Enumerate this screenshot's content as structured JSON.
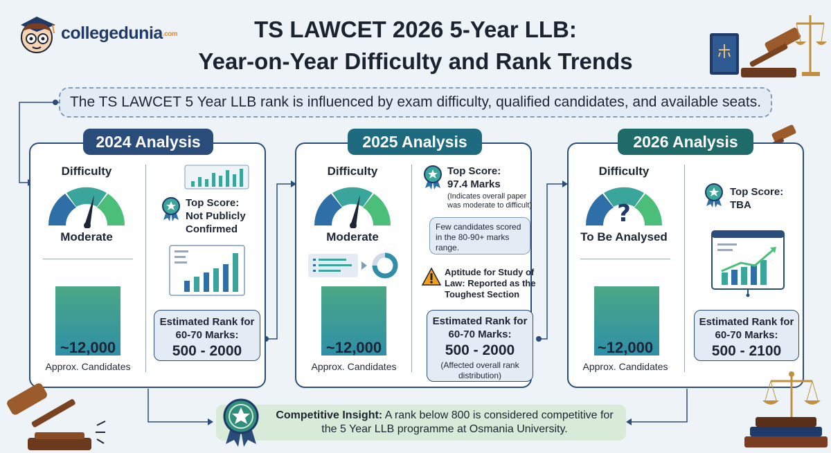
{
  "header": {
    "logo_text": "collegedunia",
    "logo_suffix": ".com",
    "title_line1": "TS LAWCET 2026 5-Year LLB:",
    "title_line2": "Year-on-Year Difficulty and Rank Trends"
  },
  "banner": "The TS LAWCET 5 Year LLB rank is influenced by exam difficulty, qualified candidates, and available seats.",
  "cards": [
    {
      "badge": "2024 Analysis",
      "difficulty_label": "Difficulty",
      "difficulty_value": "Moderate",
      "top_score_label": "Top Score:",
      "top_score_value": "Not Publicly Confirmed",
      "candidates": "~12,000",
      "candidates_label": "Approx. Candidates",
      "rank_label": "Estimated Rank for 60-70 Marks:",
      "rank_value": "500 - 2000"
    },
    {
      "badge": "2025 Analysis",
      "difficulty_label": "Difficulty",
      "difficulty_value": "Moderate",
      "top_score_label": "Top Score:",
      "top_score_value": "97.4 Marks",
      "top_score_note": "(Indicates overall paper was moderate to difficult)",
      "bubble": "Few candidates scored in the 80-90+ marks range.",
      "section_note": "Aptitude for Study of Law: Reported as the Toughest Section",
      "candidates": "~12,000",
      "candidates_label": "Approx. Candidates",
      "rank_label": "Estimated Rank for 60-70 Marks:",
      "rank_value": "500 - 2000",
      "rank_note": "(Affected overall rank distribution)"
    },
    {
      "badge": "2026 Analysis",
      "difficulty_label": "Difficulty",
      "difficulty_value": "To Be Analysed",
      "top_score_label": "Top Score:",
      "top_score_value": "TBA",
      "candidates": "~12,000",
      "candidates_label": "Approx. Candidates",
      "rank_label": "Estimated Rank for 60-70 Marks:",
      "rank_value": "500 - 2100"
    }
  ],
  "insight": {
    "label": "Competitive Insight:",
    "text": "A rank below 800 is considered competitive for the 5 Year LLB programme at Osmania University."
  },
  "colors": {
    "navy": "#2a4c7a",
    "teal": "#1e6b7f",
    "green": "#4aa884",
    "gauge_blue": "#2f6fa8",
    "gauge_teal": "#3aa59a",
    "gauge_green": "#4bbf7a",
    "warning": "#f0a020"
  }
}
